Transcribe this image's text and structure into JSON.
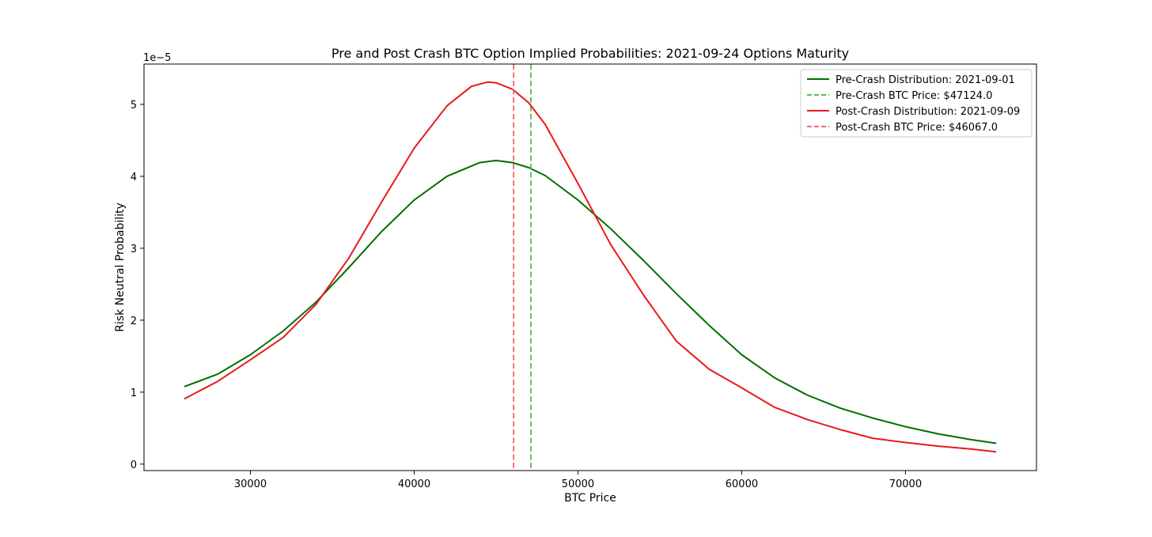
{
  "chart_data": {
    "type": "line",
    "title": "Pre and Post Crash BTC Option Implied Probabilities: 2021-09-24 Options Maturity",
    "xlabel": "BTC Price",
    "ylabel": "Risk Neutral Probability",
    "y_offset_label": "1e−5",
    "xlim": [
      23500,
      78000
    ],
    "ylim": [
      -0.09,
      5.56
    ],
    "x_ticks": [
      30000,
      40000,
      50000,
      60000,
      70000
    ],
    "x_tick_labels": [
      "30000",
      "40000",
      "50000",
      "60000",
      "70000"
    ],
    "y_ticks": [
      0,
      1,
      2,
      3,
      4,
      5
    ],
    "y_tick_labels": [
      "0",
      "1",
      "2",
      "3",
      "4",
      "5"
    ],
    "grid": false,
    "legend_position": "upper right",
    "series": [
      {
        "name": "Pre-Crash Distribution: 2021-09-01",
        "style": "solid",
        "color": "#007000",
        "x": [
          26000,
          28000,
          30000,
          32000,
          34000,
          36000,
          38000,
          40000,
          42000,
          44000,
          45000,
          46000,
          47000,
          48000,
          50000,
          52000,
          54000,
          56000,
          58000,
          60000,
          62000,
          64000,
          66000,
          68000,
          70000,
          72000,
          74000,
          75500
        ],
        "y": [
          1.08,
          1.25,
          1.52,
          1.85,
          2.25,
          2.73,
          3.23,
          3.67,
          4.0,
          4.19,
          4.22,
          4.19,
          4.12,
          4.01,
          3.67,
          3.27,
          2.83,
          2.37,
          1.93,
          1.52,
          1.2,
          0.96,
          0.78,
          0.64,
          0.52,
          0.42,
          0.34,
          0.29
        ]
      },
      {
        "name": "Pre-Crash BTC Price: $47124.0",
        "style": "dashed",
        "color": "#5cb85c",
        "vline_x": 47124
      },
      {
        "name": "Post-Crash Distribution: 2021-09-09",
        "style": "solid",
        "color": "#e8191c",
        "x": [
          26000,
          28000,
          30000,
          32000,
          34000,
          36000,
          38000,
          40000,
          42000,
          43500,
          44500,
          45000,
          46000,
          47000,
          48000,
          50000,
          52000,
          54000,
          56000,
          58000,
          60000,
          62000,
          64000,
          66000,
          68000,
          70000,
          72000,
          74000,
          75500
        ],
        "y": [
          0.91,
          1.15,
          1.45,
          1.76,
          2.22,
          2.86,
          3.64,
          4.39,
          4.98,
          5.25,
          5.31,
          5.3,
          5.21,
          5.02,
          4.72,
          3.9,
          3.05,
          2.35,
          1.71,
          1.32,
          1.06,
          0.79,
          0.62,
          0.48,
          0.36,
          0.3,
          0.25,
          0.21,
          0.17
        ]
      },
      {
        "name": "Post-Crash BTC Price: $46067.0",
        "style": "dashed",
        "color": "#f06b6b",
        "vline_x": 46067
      }
    ]
  }
}
